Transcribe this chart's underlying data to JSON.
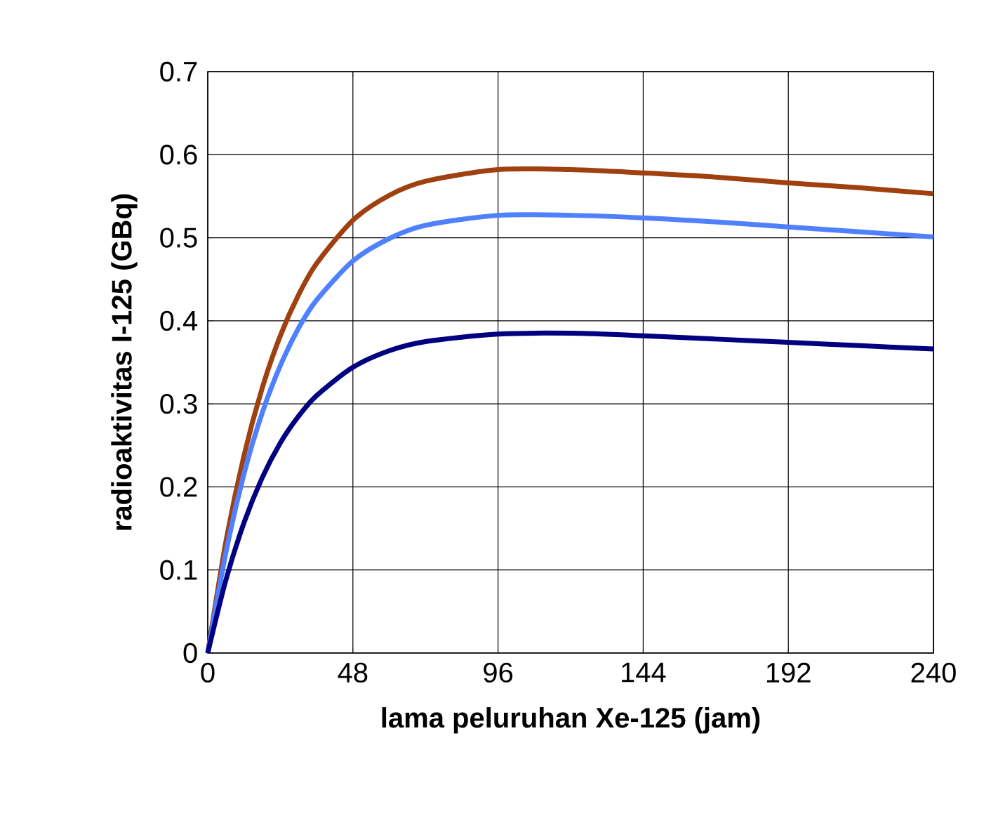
{
  "chart_data": {
    "type": "line",
    "xlabel": "lama peluruhan Xe-125 (jam)",
    "ylabel": "radioaktivitas I-125 (GBq)",
    "x": [
      0,
      6,
      12,
      18,
      24,
      30,
      36,
      48,
      60,
      72,
      96,
      120,
      144,
      168,
      192,
      216,
      240
    ],
    "series": [
      {
        "color": "#a0400f",
        "values": [
          0,
          0.134,
          0.238,
          0.319,
          0.382,
          0.431,
          0.469,
          0.521,
          0.551,
          0.568,
          0.582,
          0.582,
          0.578,
          0.573,
          0.566,
          0.56,
          0.553
        ]
      },
      {
        "color": "#4f81ff",
        "values": [
          0,
          0.121,
          0.216,
          0.289,
          0.346,
          0.391,
          0.425,
          0.472,
          0.499,
          0.515,
          0.527,
          0.527,
          0.524,
          0.519,
          0.513,
          0.507,
          0.501
        ]
      },
      {
        "color": "#000080",
        "values": [
          0,
          0.088,
          0.157,
          0.211,
          0.253,
          0.285,
          0.31,
          0.344,
          0.364,
          0.375,
          0.384,
          0.385,
          0.382,
          0.378,
          0.374,
          0.37,
          0.366
        ]
      }
    ],
    "xlim": [
      0,
      240
    ],
    "ylim": [
      0,
      0.7
    ],
    "xticks": [
      0,
      48,
      96,
      144,
      192,
      240
    ],
    "yticks": [
      0,
      0.1,
      0.2,
      0.3,
      0.4,
      0.5,
      0.6,
      0.7
    ],
    "grid": true,
    "marker": "none",
    "line_style": "solid"
  }
}
